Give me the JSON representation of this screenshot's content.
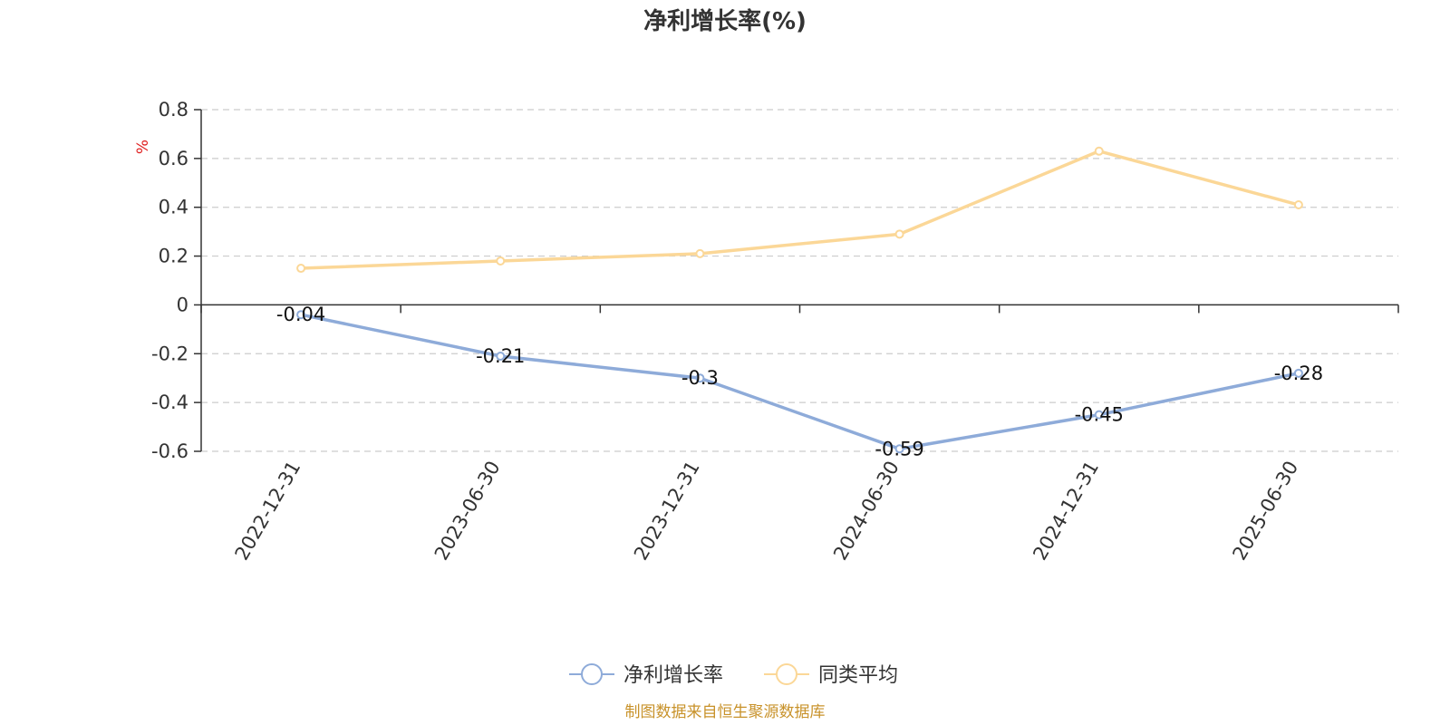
{
  "chart_data": {
    "type": "line",
    "title": "净利增长率(%)",
    "ylabel": "%",
    "categories": [
      "2022-12-31",
      "2023-06-30",
      "2023-12-31",
      "2024-06-30",
      "2024-12-31",
      "2025-06-30"
    ],
    "ylim": [
      -0.6,
      0.8
    ],
    "yticks": [
      0.8,
      0.6,
      0.4,
      0.2,
      0,
      -0.2,
      -0.4,
      -0.6
    ],
    "grid": true,
    "legend_position": "bottom-center",
    "series": [
      {
        "name": "净利增长率",
        "values": [
          -0.04,
          -0.21,
          -0.3,
          -0.59,
          -0.45,
          -0.28
        ],
        "color": "#8eabd9",
        "show_labels": true
      },
      {
        "name": "同类平均",
        "values": [
          0.15,
          0.18,
          0.21,
          0.29,
          0.63,
          0.41
        ],
        "color": "#fbd797",
        "show_labels": false
      }
    ]
  },
  "footer": {
    "text": "制图数据来自恒生聚源数据库",
    "color": "#c8922a"
  },
  "colors": {
    "ylabel": "#e02020",
    "axis": "#333333",
    "grid": "#cccccc"
  }
}
